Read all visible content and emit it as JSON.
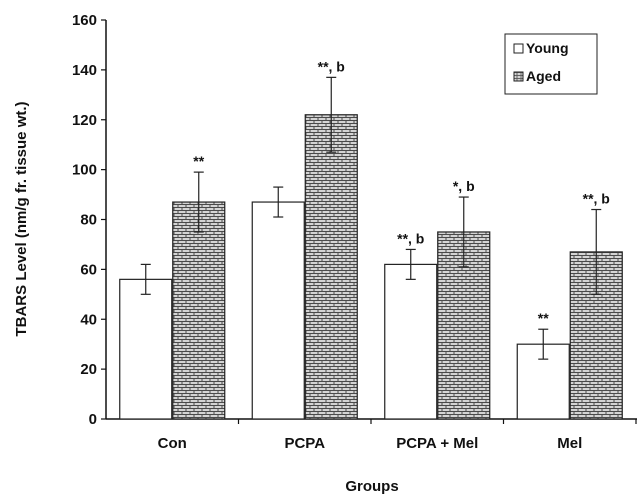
{
  "chart_data": {
    "type": "bar",
    "title": "",
    "xlabel": "Groups",
    "ylabel": "TBARS Level (nm/g fr. tissue wt.)",
    "ylim": [
      0,
      160
    ],
    "yticks": [
      0,
      20,
      40,
      60,
      80,
      100,
      120,
      140,
      160
    ],
    "grid": false,
    "legend_position": "top-right",
    "categories": [
      "Con",
      "PCPA",
      "PCPA + Mel",
      "Mel"
    ],
    "series": [
      {
        "name": "Young",
        "fill": "#ffffff",
        "pattern": "none",
        "values": [
          56,
          87,
          62,
          30
        ],
        "errors": [
          6,
          6,
          6,
          6
        ],
        "annotations": [
          "",
          "",
          "**, b",
          "**"
        ]
      },
      {
        "name": "Aged",
        "fill": "#cfcfcf",
        "pattern": "brick-hatch",
        "values": [
          87,
          122,
          75,
          67
        ],
        "errors": [
          12,
          15,
          14,
          17
        ],
        "annotations": [
          "**",
          "**, b",
          "*, b",
          "**, b"
        ]
      }
    ]
  }
}
